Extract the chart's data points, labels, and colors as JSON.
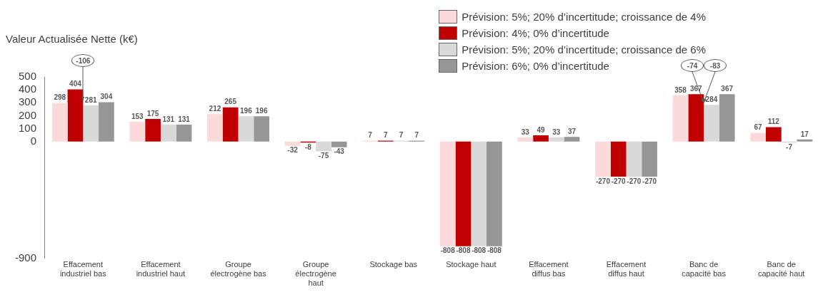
{
  "chart_data": {
    "type": "bar",
    "ylabel": "Valeur Actualisée Nette (k€)",
    "categories": [
      "Effacement industriel bas",
      "Effacement industriel haut",
      "Groupe électrogène bas",
      "Groupe électrogène haut",
      "Stockage bas",
      "Stockage haut",
      "Effacement diffus bas",
      "Effacement diffus haut",
      "Banc de capacité bas",
      "Banc de capacité haut"
    ],
    "series": [
      {
        "name": "Prévision: 5%; 20% d’incertitude; croissance de 4%",
        "color": "#fcd9da",
        "values": [
          298,
          153,
          212,
          -32,
          7,
          -808,
          33,
          -270,
          358,
          67
        ]
      },
      {
        "name": "Prévision: 4%; 0% d’incertitude",
        "color": "#c00000",
        "values": [
          404,
          175,
          265,
          -8,
          7,
          -808,
          49,
          -270,
          367,
          112
        ]
      },
      {
        "name": "Prévision: 5%; 20% d’incertitude; croissance de 6%",
        "color": "#d9d9d9",
        "values": [
          281,
          131,
          196,
          -75,
          7,
          -808,
          33,
          -270,
          284,
          -7
        ]
      },
      {
        "name": "Prévision: 6%; 0% d’incertitude",
        "color": "#969696",
        "values": [
          304,
          131,
          196,
          -43,
          7,
          -808,
          37,
          -270,
          367,
          17
        ]
      }
    ],
    "ylim": [
      -900,
      500
    ],
    "yticks": [
      -900,
      0,
      100,
      200,
      300,
      400,
      500
    ],
    "data_labels": true,
    "legend": "top right",
    "grid": false,
    "annotations": [
      {
        "text": "-106",
        "x": "Effacement industriel bas",
        "y": 298
      },
      {
        "text": "-74",
        "x": "Banc de capacité bas",
        "y": 284
      },
      {
        "text": "-83",
        "x": "Banc de capacité bas",
        "y": 284
      }
    ]
  }
}
